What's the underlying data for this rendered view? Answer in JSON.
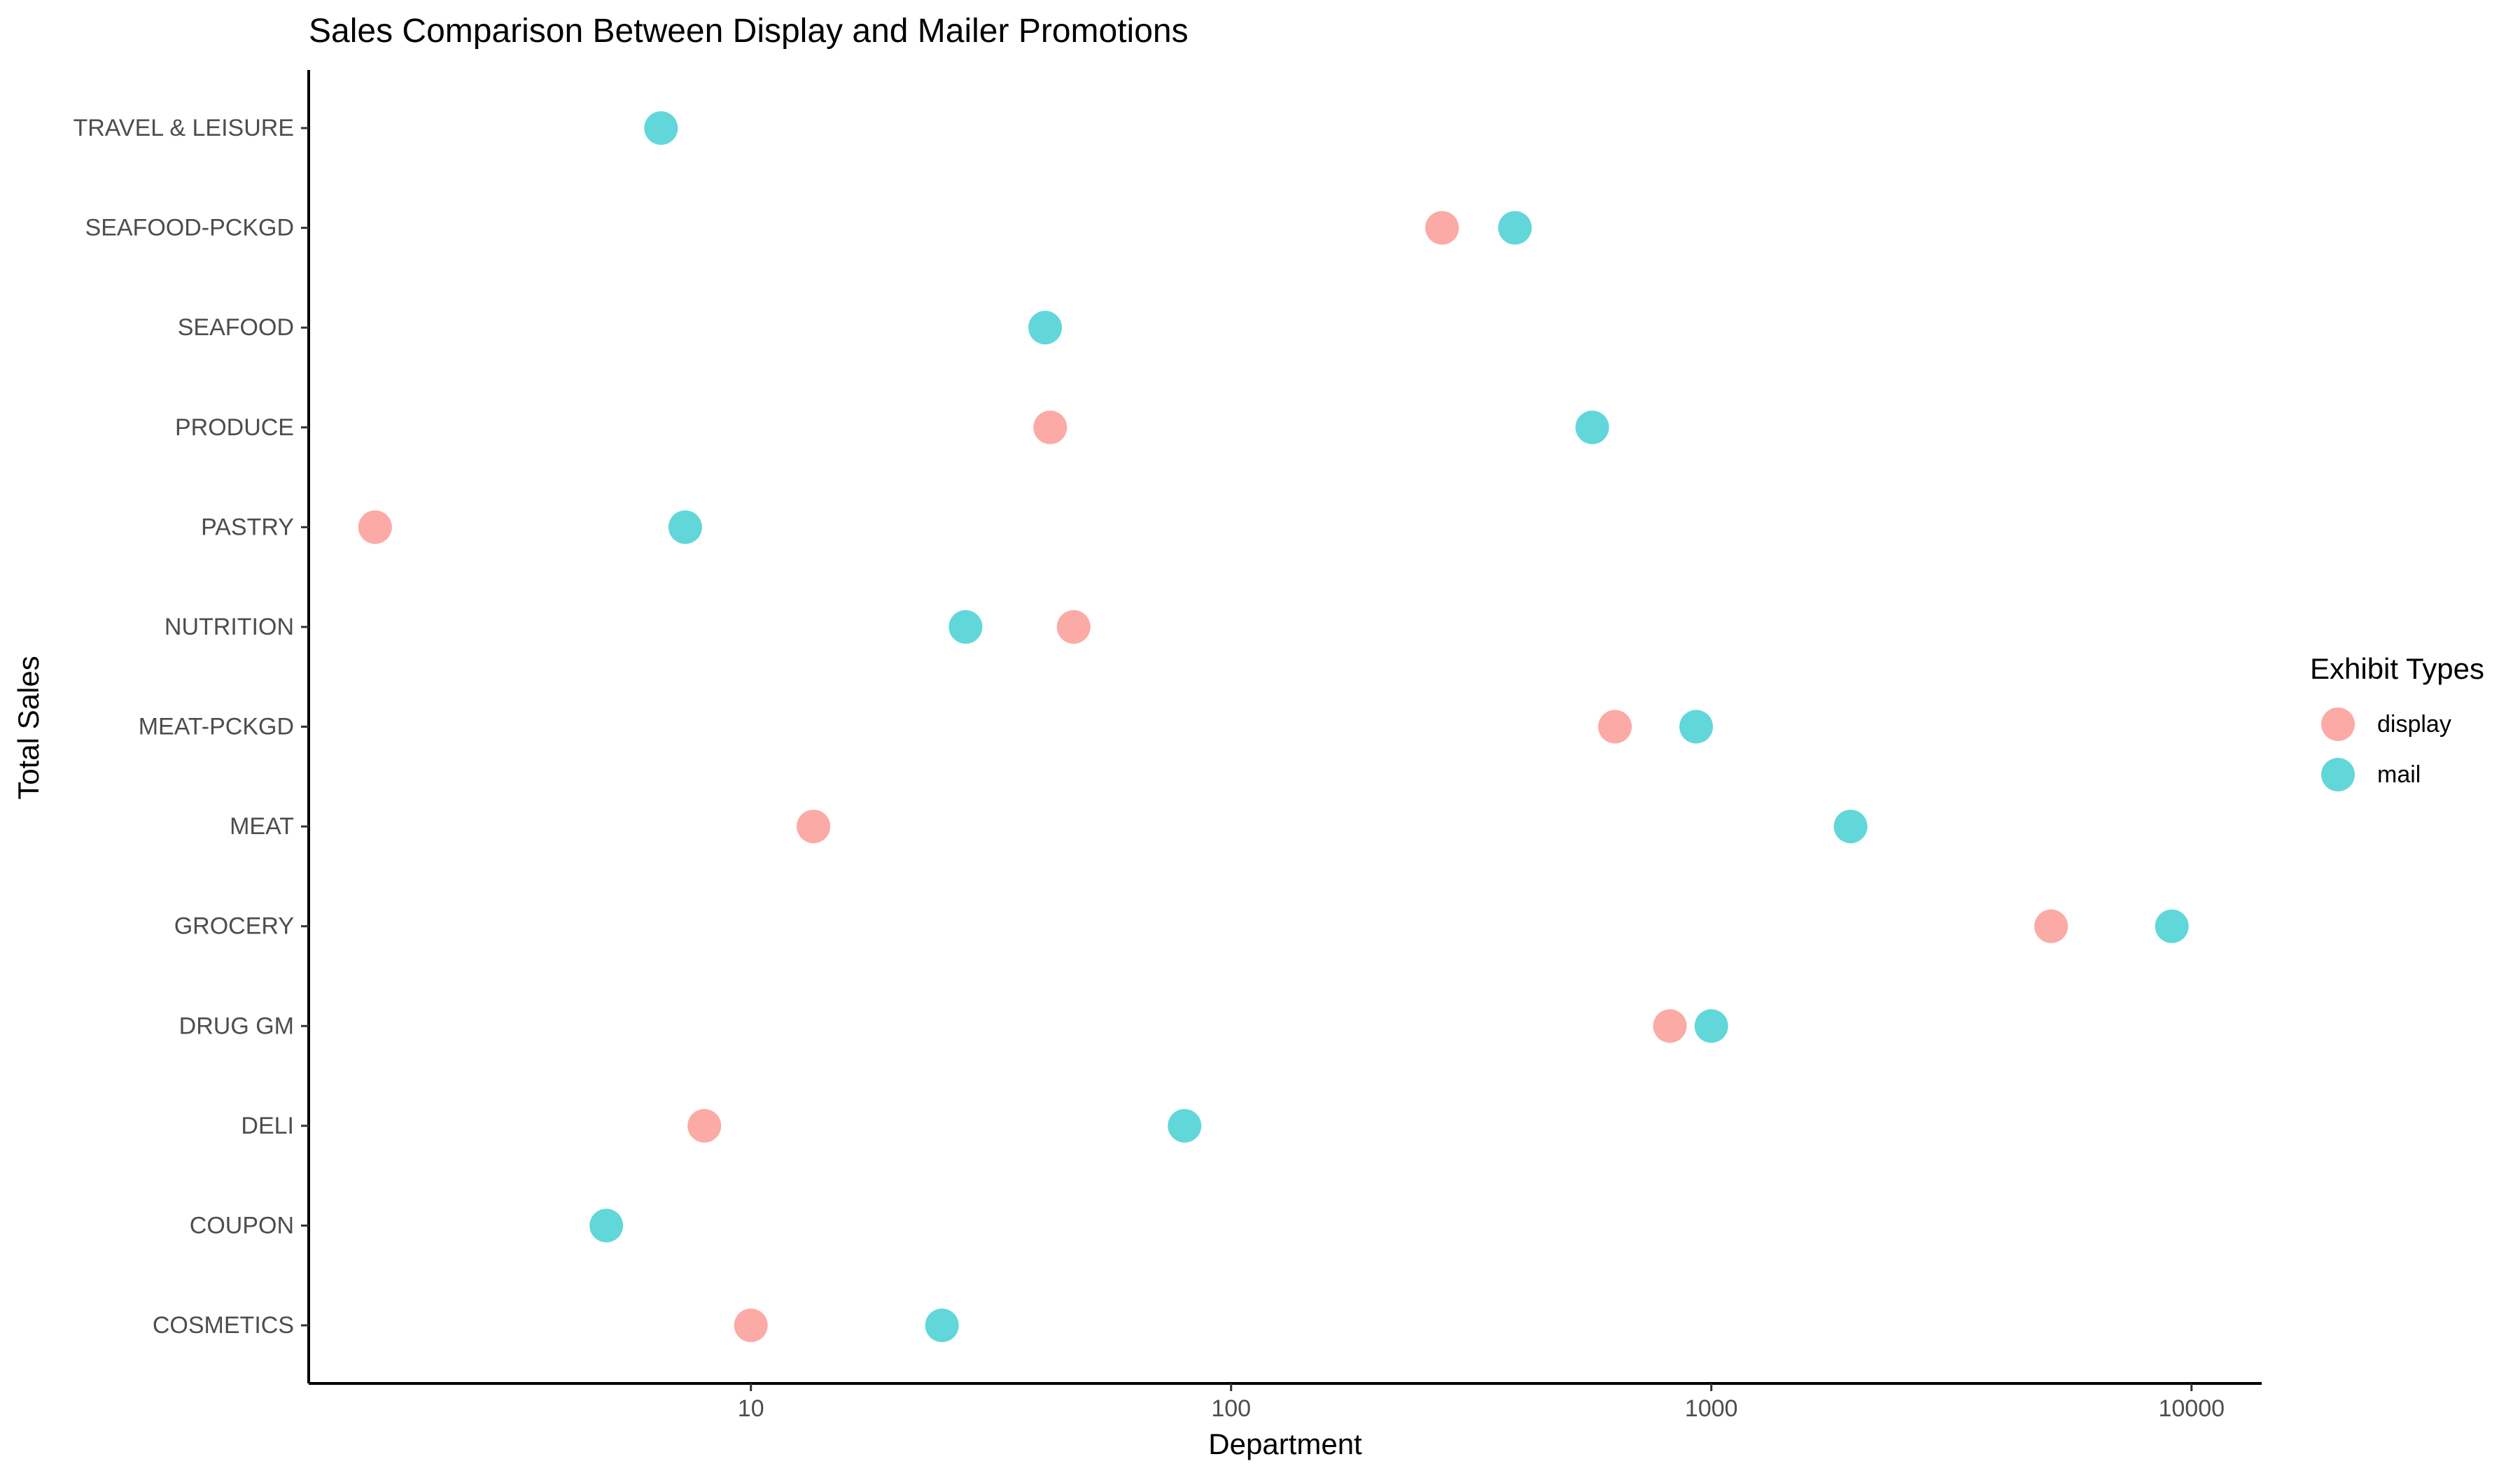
{
  "chart_data": {
    "type": "scatter",
    "title": "Sales Comparison Between Display and Mailer Promotions",
    "xlabel": "Department",
    "ylabel": "Total Sales",
    "x_scale": "log10",
    "xlim": [
      1.2,
      14000
    ],
    "x_ticks": [
      10,
      100,
      1000,
      10000
    ],
    "x_tick_labels": [
      "10",
      "100",
      "1000",
      "10000"
    ],
    "categories": [
      "COSMETICS",
      "COUPON",
      "DELI",
      "DRUG GM",
      "GROCERY",
      "MEAT",
      "MEAT-PCKGD",
      "NUTRITION",
      "PASTRY",
      "PRODUCE",
      "SEAFOOD",
      "SEAFOOD-PCKGD",
      "TRAVEL & LEISURE"
    ],
    "series": [
      {
        "name": "display",
        "color": "#F8766D",
        "values": [
          10,
          null,
          8,
          820,
          5100,
          13.5,
          630,
          47,
          1.65,
          42,
          null,
          275,
          null
        ]
      },
      {
        "name": "mail",
        "color": "#00BFC4",
        "values": [
          25,
          5,
          80,
          1000,
          9100,
          1950,
          930,
          28,
          7.3,
          565,
          41,
          390,
          6.5
        ]
      }
    ],
    "legend": {
      "title": "Exhibit Types",
      "position": "right"
    },
    "grid": false
  }
}
